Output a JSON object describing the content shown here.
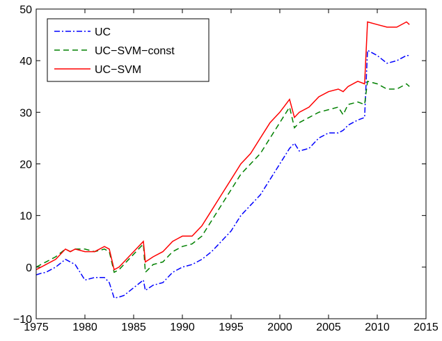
{
  "chart_data": {
    "type": "line",
    "x": [
      1975,
      1975.5,
      1976,
      1977,
      1978,
      1978.5,
      1979,
      1980,
      1981,
      1982,
      1982.5,
      1983,
      1983.5,
      1984,
      1985,
      1986,
      1986.2,
      1987,
      1988,
      1989,
      1990,
      1991,
      1992,
      1993,
      1994,
      1995,
      1996,
      1997,
      1998,
      1999,
      2000,
      2001,
      2001.5,
      2002,
      2003,
      2004,
      2005,
      2006,
      2006.5,
      2007,
      2008,
      2008.7,
      2009,
      2010,
      2011,
      2012,
      2013,
      2013.3
    ],
    "series": [
      {
        "name": "UC",
        "color": "#0000ff",
        "dash": "dashdot",
        "values": [
          -1.5,
          -1.2,
          -1,
          0,
          1.5,
          1,
          0.5,
          -2.5,
          -2,
          -2,
          -3,
          -6,
          -5.8,
          -5.5,
          -4,
          -2.5,
          -4.5,
          -3.5,
          -3,
          -1,
          0,
          0.5,
          1.5,
          3,
          5,
          7,
          10,
          12,
          14,
          17,
          20,
          23,
          24,
          22.5,
          23,
          25,
          26,
          26,
          26.5,
          27.5,
          28.5,
          29,
          42,
          41,
          39.5,
          40,
          41,
          41
        ]
      },
      {
        "name": "UC−SVM−const",
        "color": "#008000",
        "dash": "dashed",
        "values": [
          0,
          0.5,
          1,
          2,
          3.5,
          3,
          3.5,
          3.5,
          3,
          3.5,
          3,
          -1,
          -0.5,
          0.5,
          2.5,
          4.5,
          -1,
          0.5,
          1,
          3,
          4,
          4.5,
          6,
          9,
          12,
          15,
          18,
          20,
          22,
          25,
          28,
          31,
          27,
          28,
          29,
          30,
          30.5,
          31,
          29.5,
          31.5,
          32,
          31.5,
          36,
          35.5,
          34.5,
          34.5,
          35.5,
          35
        ]
      },
      {
        "name": "UC−SVM",
        "color": "#ff0000",
        "dash": "solid",
        "values": [
          -0.5,
          0,
          0.5,
          1.5,
          3.5,
          3,
          3.5,
          3,
          3,
          4,
          3.5,
          -0.5,
          0,
          1,
          3,
          5,
          1,
          2,
          3,
          5,
          6,
          6,
          8,
          11,
          14,
          17,
          20,
          22,
          25,
          28,
          30,
          32.5,
          29,
          30,
          31,
          33,
          34,
          34.5,
          34,
          35,
          36,
          35.5,
          47.5,
          47,
          46.5,
          46.5,
          47.5,
          47
        ]
      }
    ],
    "xlim": [
      1975,
      2015
    ],
    "xticks": [
      1975,
      1980,
      1985,
      1990,
      1995,
      2000,
      2005,
      2010,
      2015
    ],
    "ylim": [
      -10,
      50
    ],
    "yticks": [
      {
        "value": -10,
        "label": "−10"
      },
      0,
      10,
      20,
      30,
      40,
      50
    ],
    "legend": "upper left",
    "grid": false
  }
}
